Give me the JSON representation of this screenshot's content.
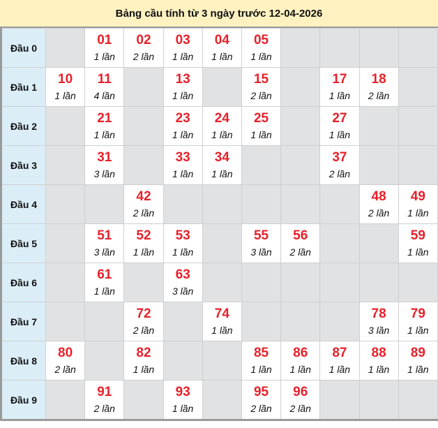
{
  "title": "Bảng cầu tính từ 3 ngày trước 12-04-2026",
  "colors": {
    "number": "#e8202a",
    "header_bg": "#fff2c0",
    "row_head_bg": "#dbeef8",
    "empty_cell": "#e1e2e4"
  },
  "rows": [
    {
      "label": "Đầu 0",
      "cells": [
        null,
        {
          "num": "01",
          "count": "1 lần"
        },
        {
          "num": "02",
          "count": "2 lần"
        },
        {
          "num": "03",
          "count": "1 lần"
        },
        {
          "num": "04",
          "count": "1 lần"
        },
        {
          "num": "05",
          "count": "1 lần"
        },
        null,
        null,
        null,
        null
      ]
    },
    {
      "label": "Đầu 1",
      "cells": [
        {
          "num": "10",
          "count": "1 lần"
        },
        {
          "num": "11",
          "count": "4 lần"
        },
        null,
        {
          "num": "13",
          "count": "1 lần"
        },
        null,
        {
          "num": "15",
          "count": "2 lần"
        },
        null,
        {
          "num": "17",
          "count": "1 lần"
        },
        {
          "num": "18",
          "count": "2 lần"
        },
        null
      ]
    },
    {
      "label": "Đầu 2",
      "cells": [
        null,
        {
          "num": "21",
          "count": "1 lần"
        },
        null,
        {
          "num": "23",
          "count": "1 lần"
        },
        {
          "num": "24",
          "count": "1 lần"
        },
        {
          "num": "25",
          "count": "1 lần"
        },
        null,
        {
          "num": "27",
          "count": "1 lần"
        },
        null,
        null
      ]
    },
    {
      "label": "Đầu 3",
      "cells": [
        null,
        {
          "num": "31",
          "count": "3 lần"
        },
        null,
        {
          "num": "33",
          "count": "1 lần"
        },
        {
          "num": "34",
          "count": "1 lần"
        },
        null,
        null,
        {
          "num": "37",
          "count": "2 lần"
        },
        null,
        null
      ]
    },
    {
      "label": "Đầu 4",
      "cells": [
        null,
        null,
        {
          "num": "42",
          "count": "2 lần"
        },
        null,
        null,
        null,
        null,
        null,
        {
          "num": "48",
          "count": "2 lần"
        },
        {
          "num": "49",
          "count": "1 lần"
        }
      ]
    },
    {
      "label": "Đầu 5",
      "cells": [
        null,
        {
          "num": "51",
          "count": "3 lần"
        },
        {
          "num": "52",
          "count": "1 lần"
        },
        {
          "num": "53",
          "count": "1 lần"
        },
        null,
        {
          "num": "55",
          "count": "3 lần"
        },
        {
          "num": "56",
          "count": "2 lần"
        },
        null,
        null,
        {
          "num": "59",
          "count": "1 lần"
        }
      ]
    },
    {
      "label": "Đầu 6",
      "cells": [
        null,
        {
          "num": "61",
          "count": "1 lần"
        },
        null,
        {
          "num": "63",
          "count": "3 lần"
        },
        null,
        null,
        null,
        null,
        null,
        null
      ]
    },
    {
      "label": "Đầu 7",
      "cells": [
        null,
        null,
        {
          "num": "72",
          "count": "2 lần"
        },
        null,
        {
          "num": "74",
          "count": "1 lần"
        },
        null,
        null,
        null,
        {
          "num": "78",
          "count": "3 lần"
        },
        {
          "num": "79",
          "count": "1 lần"
        }
      ]
    },
    {
      "label": "Đầu 8",
      "cells": [
        {
          "num": "80",
          "count": "2 lần"
        },
        null,
        {
          "num": "82",
          "count": "1 lần"
        },
        null,
        null,
        {
          "num": "85",
          "count": "1 lần"
        },
        {
          "num": "86",
          "count": "1 lần"
        },
        {
          "num": "87",
          "count": "1 lần"
        },
        {
          "num": "88",
          "count": "1 lần"
        },
        {
          "num": "89",
          "count": "1 lần"
        }
      ]
    },
    {
      "label": "Đầu 9",
      "cells": [
        null,
        {
          "num": "91",
          "count": "2 lần"
        },
        null,
        {
          "num": "93",
          "count": "1 lần"
        },
        null,
        {
          "num": "95",
          "count": "2 lần"
        },
        {
          "num": "96",
          "count": "2 lần"
        },
        null,
        null,
        null
      ]
    }
  ]
}
